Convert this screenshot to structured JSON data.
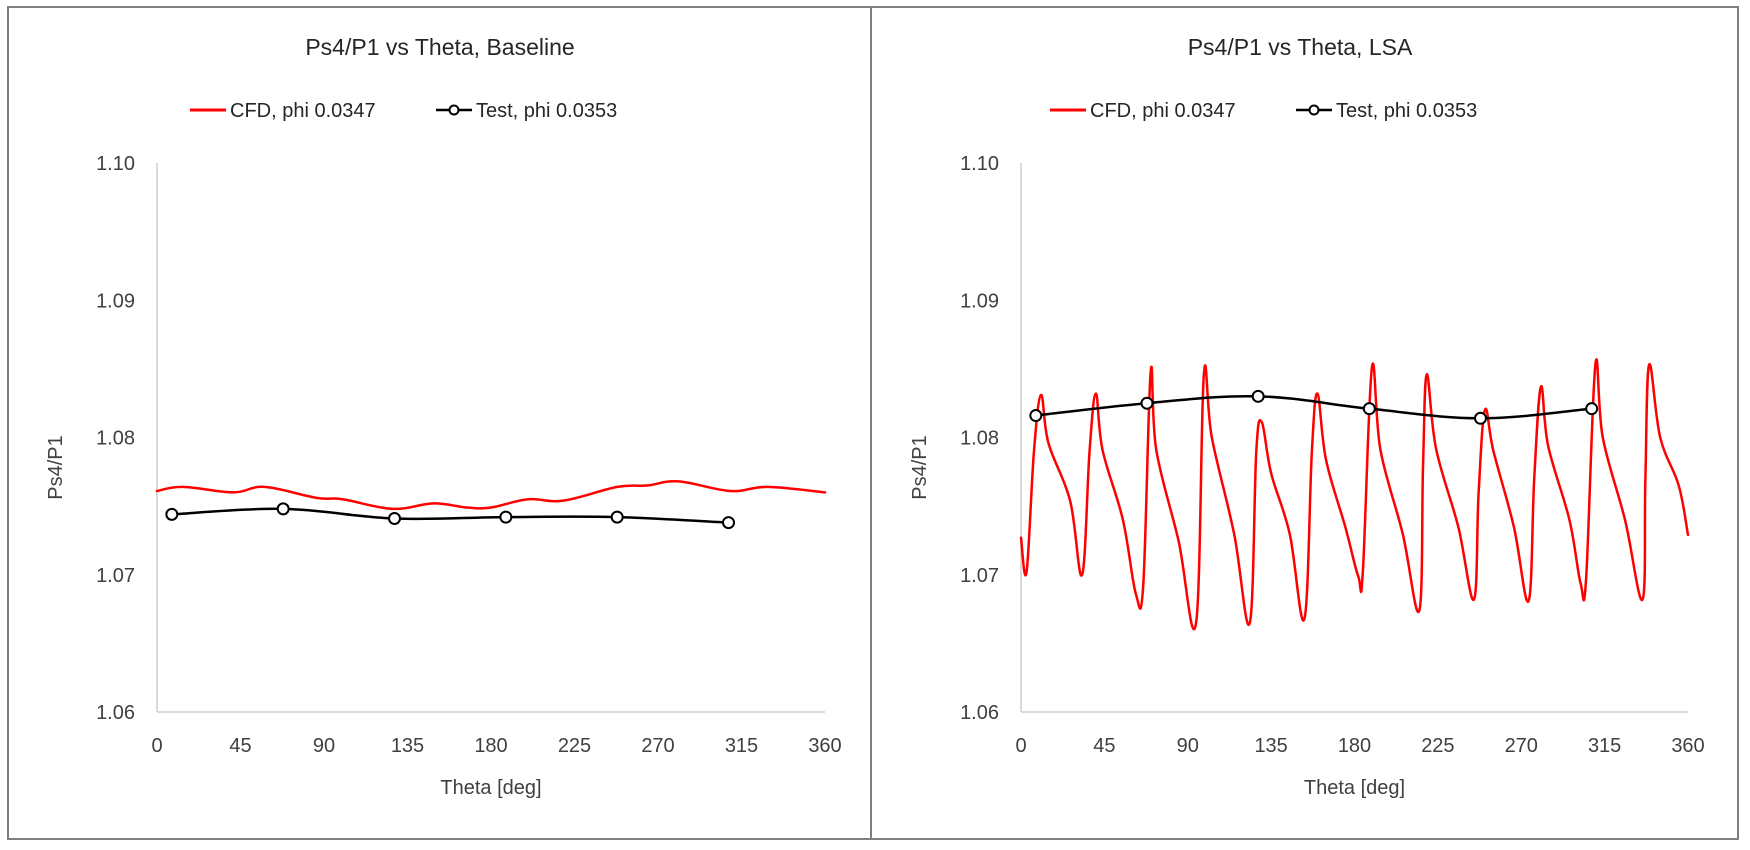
{
  "chart_data": [
    {
      "type": "line",
      "title": "Ps4/P1 vs Theta, Baseline",
      "xlabel": "Theta [deg]",
      "ylabel": "Ps4/P1",
      "xlim": [
        0,
        360
      ],
      "ylim": [
        1.06,
        1.1
      ],
      "xticks": [
        0,
        45,
        90,
        135,
        180,
        225,
        270,
        315,
        360
      ],
      "xtick_labels": [
        "0",
        "45",
        "90",
        "135",
        "180",
        "225",
        "270",
        "315",
        "360"
      ],
      "yticks": [
        1.06,
        1.07,
        1.08,
        1.09,
        1.1
      ],
      "ytick_labels": [
        "1.06",
        "1.07",
        "1.08",
        "1.09",
        "1.10"
      ],
      "grid": false,
      "legend_position": "top-center",
      "series": [
        {
          "name": "CFD, phi 0.0347",
          "color": "#ff0000",
          "marker": "none",
          "smooth": true,
          "x": [
            0,
            14,
            41,
            58,
            86,
            100,
            127,
            149,
            167,
            180,
            200,
            219,
            248,
            264,
            281,
            309,
            329,
            360
          ],
          "y": [
            1.0761,
            1.0764,
            1.076,
            1.0764,
            1.0756,
            1.0755,
            1.0748,
            1.0752,
            1.0749,
            1.0749,
            1.0755,
            1.0754,
            1.0764,
            1.0765,
            1.0768,
            1.0761,
            1.0764,
            1.076
          ]
        },
        {
          "name": "Test, phi 0.0353",
          "color": "#000000",
          "marker": "open-circle",
          "smooth": true,
          "x": [
            8,
            68,
            128,
            188,
            248,
            308
          ],
          "y": [
            1.0744,
            1.0748,
            1.0741,
            1.0742,
            1.0742,
            1.0738
          ]
        }
      ]
    },
    {
      "type": "line",
      "title": "Ps4/P1 vs Theta, LSA",
      "xlabel": "Theta [deg]",
      "ylabel": "Ps4/P1",
      "xlim": [
        0,
        360
      ],
      "ylim": [
        1.06,
        1.1
      ],
      "xticks": [
        0,
        45,
        90,
        135,
        180,
        225,
        270,
        315,
        360
      ],
      "xtick_labels": [
        "0",
        "45",
        "90",
        "135",
        "180",
        "225",
        "270",
        "315",
        "360"
      ],
      "yticks": [
        1.06,
        1.07,
        1.08,
        1.09,
        1.1
      ],
      "ytick_labels": [
        "1.06",
        "1.07",
        "1.08",
        "1.09",
        "1.10"
      ],
      "grid": false,
      "legend_position": "top-center",
      "series": [
        {
          "name": "CFD, phi 0.0347",
          "color": "#ff0000",
          "marker": "none",
          "smooth": false,
          "x": [
            0,
            3,
            7,
            10.8,
            14.8,
            26.5,
            33,
            37,
            40.4,
            44,
            55,
            62,
            66,
            70,
            73,
            85,
            94.5,
            98.7,
            103,
            115,
            123.5,
            127,
            130,
            135,
            145,
            153,
            157,
            160,
            164.6,
            175,
            182,
            184.5,
            189.4,
            194,
            206,
            215,
            217,
            219,
            224,
            236,
            244.5,
            247,
            250.4,
            255,
            266,
            274,
            277,
            280.6,
            284.5,
            296,
            302,
            305,
            310,
            314,
            326,
            335.5,
            337,
            339,
            345,
            355,
            360
          ],
          "y": [
            1.0727,
            1.0702,
            1.079,
            1.0831,
            1.0796,
            1.0754,
            1.07,
            1.079,
            1.0832,
            1.0791,
            1.074,
            1.0686,
            1.0693,
            1.0848,
            1.0791,
            1.0725,
            1.0665,
            1.0846,
            1.08,
            1.073,
            1.0665,
            1.079,
            1.0811,
            1.0774,
            1.073,
            1.0668,
            1.079,
            1.0832,
            1.0784,
            1.0735,
            1.0699,
            1.0702,
            1.0851,
            1.0791,
            1.073,
            1.0674,
            1.078,
            1.0846,
            1.0792,
            1.0735,
            1.0682,
            1.076,
            1.082,
            1.079,
            1.0735,
            1.0681,
            1.077,
            1.0837,
            1.0794,
            1.074,
            1.0694,
            1.0697,
            1.0853,
            1.08,
            1.074,
            1.0682,
            1.077,
            1.0853,
            1.08,
            1.0765,
            1.0729
          ]
        },
        {
          "name": "Test, phi 0.0353",
          "color": "#000000",
          "marker": "open-circle",
          "smooth": true,
          "x": [
            8,
            68,
            128,
            188,
            248,
            308
          ],
          "y": [
            1.0816,
            1.0825,
            1.083,
            1.0821,
            1.0814,
            1.0821
          ]
        }
      ]
    }
  ]
}
